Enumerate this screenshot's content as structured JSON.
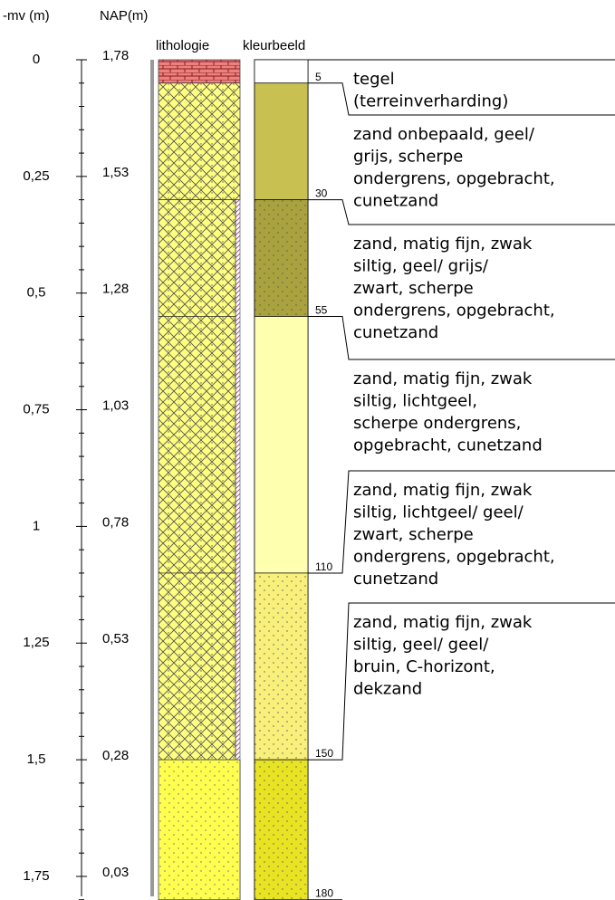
{
  "header": {
    "depth": "-mv (m)",
    "nap": "NAP(m)",
    "lithology": "lithologie",
    "color": "kleurbeeld"
  },
  "scale": {
    "depth": [
      "0",
      "0,25",
      "0,5",
      "0,75",
      "1",
      "1,25",
      "1,5",
      "1,75"
    ],
    "nap": [
      "1,78",
      "1,53",
      "1,28",
      "1,03",
      "0,78",
      "0,53",
      "0,28",
      "0,03"
    ]
  },
  "layers": [
    {
      "bottom": 5,
      "lithology": "brick",
      "color": "#ffffff",
      "dotted": false,
      "description": [
        "tegel",
        "(terreinverharding)"
      ]
    },
    {
      "bottom": 30,
      "lithology": "hatch",
      "color": "#c8c050",
      "dotted": false,
      "description": [
        "zand onbepaald, geel/",
        "grijs, scherpe",
        "ondergrens, opgebracht,",
        "cunetzand"
      ]
    },
    {
      "bottom": 55,
      "lithology": "hatch",
      "color": "#a9a23e",
      "dotted": true,
      "description": [
        "zand, matig fijn, zwak",
        "siltig, geel/ grijs/",
        "zwart, scherpe",
        "ondergrens, opgebracht,",
        "cunetzand"
      ]
    },
    {
      "bottom": 110,
      "lithology": "hatch",
      "color": "#ffffb0",
      "dotted": false,
      "description": [
        "zand, matig fijn, zwak",
        "siltig, lichtgeel,",
        "scherpe ondergrens,",
        "opgebracht, cunetzand"
      ]
    },
    {
      "bottom": 150,
      "lithology": "hatch",
      "color": "#f8f07a",
      "dotted": true,
      "description": [
        "zand, matig fijn, zwak",
        "siltig, lichtgeel/ geel/",
        "zwart, scherpe",
        "ondergrens, opgebracht,",
        "cunetzand"
      ]
    },
    {
      "bottom": 180,
      "lithology": "dots",
      "color": "#e8e424",
      "dotted": true,
      "description": [
        "zand, matig fijn, zwak",
        "siltig, geel/ geel/",
        "bruin, C-horizont,",
        "dekzand"
      ]
    }
  ]
}
